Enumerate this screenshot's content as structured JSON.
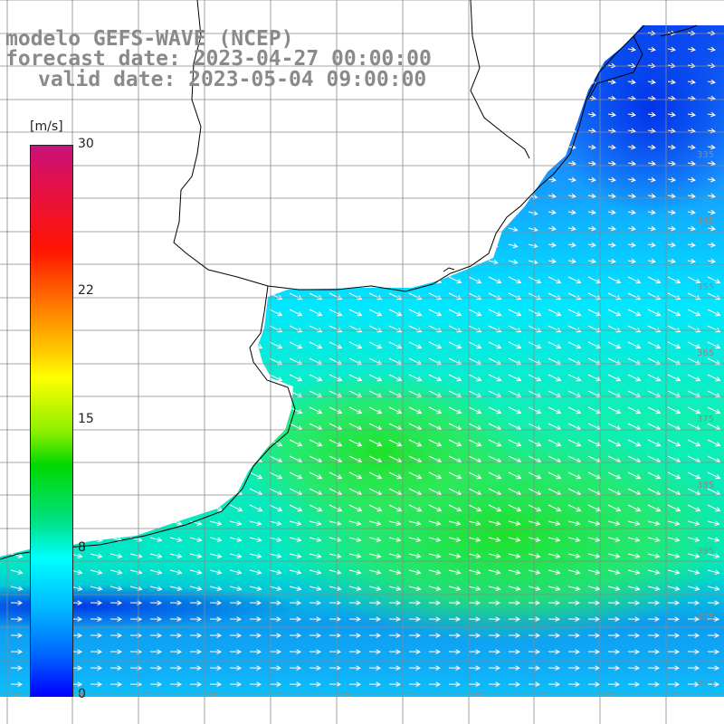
{
  "header": {
    "title": "modelo GEFS-WAVE (NCEP)",
    "forecast": "forecast date: 2023-04-27 00:00:00",
    "valid": "valid date: 2023-05-04 09:00:00"
  },
  "colorbar": {
    "unit": "[m/s]",
    "ticks": [
      {
        "label": "30",
        "value": 30
      },
      {
        "label": "22",
        "value": 22
      },
      {
        "label": "15",
        "value": 15
      },
      {
        "label": "8",
        "value": 8
      },
      {
        "label": "0",
        "value": 0
      }
    ],
    "colors": [
      "#c8127e",
      "#ff1400",
      "#ff7a00",
      "#ffff00",
      "#00d800",
      "#00ffff",
      "#0000ff"
    ]
  },
  "grid_labels": {
    "lat": [
      "335",
      "345",
      "355",
      "365",
      "375",
      "385",
      "395",
      "405",
      "415"
    ],
    "lon": [
      "4",
      "4",
      "3",
      "3",
      "3",
      "3",
      "3",
      "3",
      "3",
      "3",
      "3"
    ]
  },
  "colors": {
    "land": "#ffffff",
    "grid": "#8a8a8a",
    "coast": "#000000",
    "arrow": "#ffffff"
  }
}
